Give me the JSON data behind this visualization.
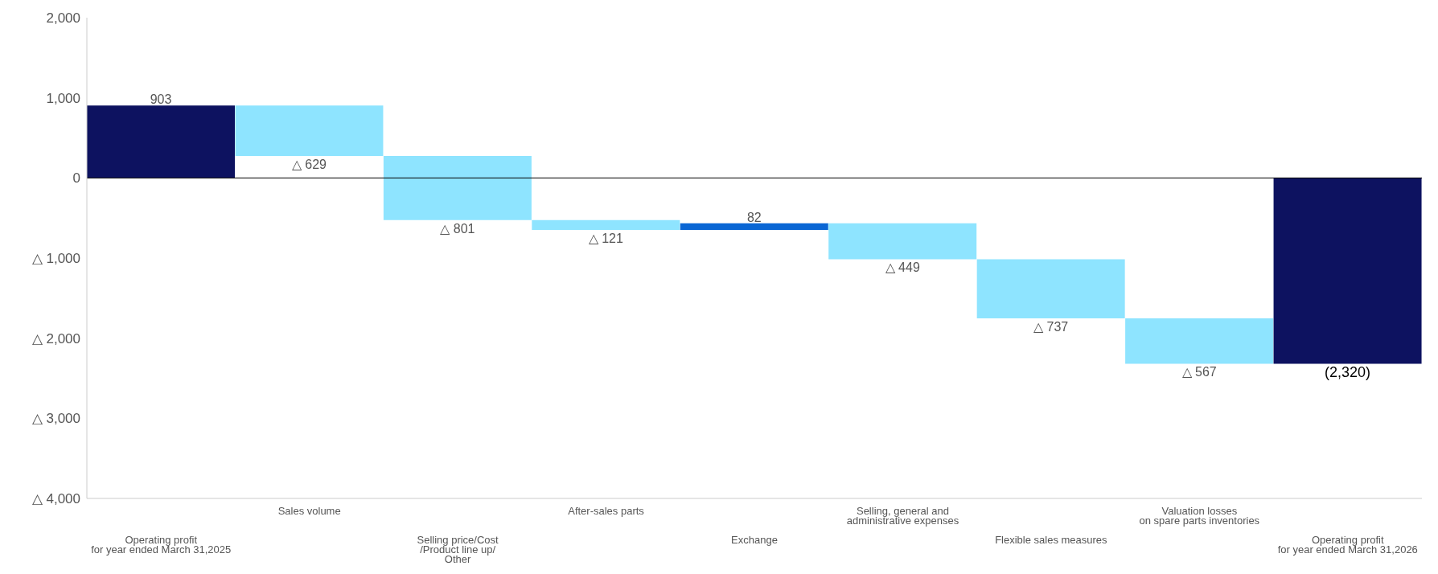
{
  "chart_data": {
    "type": "bar",
    "categories": [
      "Operating profit\nfor year ended March 31,2025",
      "Sales volume",
      "Selling price/Cost\n/Product line up/\nOther",
      "After-sales parts",
      "Exchange",
      "Selling, general and\nadministrative expenses",
      "Flexible sales measures",
      "Valuation losses\non spare parts inventories",
      "Operating profit\nfor year ended March 31,2026"
    ],
    "values": [
      903,
      -629,
      -801,
      -121,
      82,
      -449,
      -737,
      -567,
      -2320
    ],
    "base": [
      0,
      903,
      274,
      -527,
      -648,
      -566,
      -1015,
      -1752,
      0
    ],
    "colors": [
      "#0d1260",
      "#8ee4ff",
      "#8ee4ff",
      "#8ee4ff",
      "#0a66d4",
      "#8ee4ff",
      "#8ee4ff",
      "#8ee4ff",
      "#0d1260"
    ],
    "value_labels": [
      "903",
      "△ 629",
      "△ 801",
      "△ 121",
      "82",
      "△ 449",
      "△ 737",
      "△ 567",
      "(2,320)"
    ],
    "ylim": [
      -4000,
      2000
    ],
    "yticks": [
      {
        "value": 2000,
        "label": "2,000"
      },
      {
        "value": 1000,
        "label": "1,000"
      },
      0,
      {
        "value": -1000,
        "label": "△ 1,000"
      },
      {
        "value": -2000,
        "label": "△ 2,000"
      },
      {
        "value": -3000,
        "label": "△ 3,000"
      },
      {
        "value": -4000,
        "label": "△ 4,000"
      }
    ],
    "ref_lines": [
      {
        "axis": "y",
        "value": 0,
        "color": "#000000"
      }
    ],
    "grid": false,
    "legend": false
  }
}
